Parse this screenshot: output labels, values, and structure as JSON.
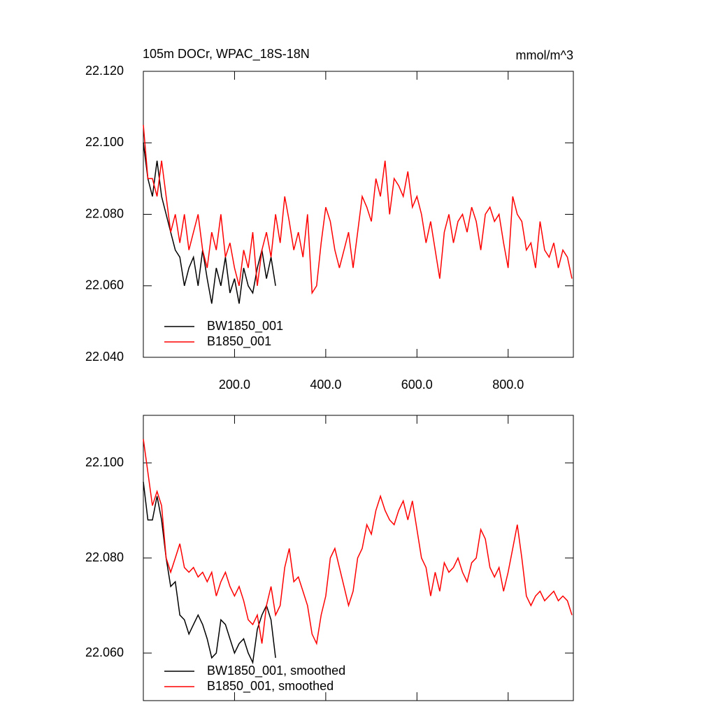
{
  "chart_data": [
    {
      "type": "line",
      "title": "105m DOCr, WPAC_18S-18N",
      "units": "mmol/m^3",
      "xlim": [
        0,
        943
      ],
      "ylim": [
        22.04,
        22.12
      ],
      "xticks": [
        {
          "value": 200,
          "label": "200.0"
        },
        {
          "value": 400,
          "label": "400.0"
        },
        {
          "value": 600,
          "label": "600.0"
        },
        {
          "value": 800,
          "label": "800.0"
        }
      ],
      "yticks": [
        {
          "value": 22.04,
          "label": "22.040"
        },
        {
          "value": 22.06,
          "label": "22.060"
        },
        {
          "value": 22.08,
          "label": "22.080"
        },
        {
          "value": 22.1,
          "label": "22.100"
        },
        {
          "value": 22.12,
          "label": "22.120"
        }
      ],
      "series": [
        {
          "name": "BW1850_001",
          "color": "#000000",
          "x": [
            0,
            10,
            20,
            30,
            40,
            50,
            60,
            70,
            80,
            90,
            100,
            110,
            120,
            130,
            140,
            150,
            160,
            170,
            180,
            190,
            200,
            210,
            220,
            230,
            240,
            250,
            260,
            270,
            280,
            290
          ],
          "values": [
            22.1,
            22.09,
            22.085,
            22.095,
            22.085,
            22.08,
            22.075,
            22.07,
            22.068,
            22.06,
            22.065,
            22.068,
            22.06,
            22.07,
            22.062,
            22.055,
            22.065,
            22.06,
            22.068,
            22.058,
            22.062,
            22.055,
            22.065,
            22.06,
            22.058,
            22.065,
            22.07,
            22.062,
            22.068,
            22.06
          ]
        },
        {
          "name": "B1850_001",
          "color": "#ff0000",
          "x": [
            0,
            10,
            20,
            30,
            40,
            50,
            60,
            70,
            80,
            90,
            100,
            110,
            120,
            130,
            140,
            150,
            160,
            170,
            180,
            190,
            200,
            210,
            220,
            230,
            240,
            250,
            260,
            270,
            280,
            290,
            300,
            310,
            320,
            330,
            340,
            350,
            360,
            370,
            380,
            390,
            400,
            410,
            420,
            430,
            440,
            450,
            460,
            470,
            480,
            490,
            500,
            510,
            520,
            530,
            540,
            550,
            560,
            570,
            580,
            590,
            600,
            610,
            620,
            630,
            640,
            650,
            660,
            670,
            680,
            690,
            700,
            710,
            720,
            730,
            740,
            750,
            760,
            770,
            780,
            790,
            800,
            810,
            820,
            830,
            840,
            850,
            860,
            870,
            880,
            890,
            900,
            910,
            920,
            930,
            940
          ],
          "values": [
            22.105,
            22.09,
            22.09,
            22.085,
            22.095,
            22.085,
            22.075,
            22.08,
            22.072,
            22.08,
            22.07,
            22.075,
            22.08,
            22.07,
            22.065,
            22.075,
            22.07,
            22.08,
            22.068,
            22.072,
            22.065,
            22.06,
            22.07,
            22.065,
            22.075,
            22.06,
            22.07,
            22.075,
            22.068,
            22.08,
            22.072,
            22.085,
            22.078,
            22.07,
            22.075,
            22.068,
            22.08,
            22.058,
            22.06,
            22.072,
            22.082,
            22.078,
            22.07,
            22.065,
            22.07,
            22.075,
            22.065,
            22.075,
            22.085,
            22.082,
            22.078,
            22.09,
            22.085,
            22.095,
            22.08,
            22.09,
            22.088,
            22.085,
            22.092,
            22.082,
            22.085,
            22.08,
            22.072,
            22.078,
            22.07,
            22.062,
            22.075,
            22.08,
            22.072,
            22.078,
            22.08,
            22.075,
            22.082,
            22.078,
            22.07,
            22.08,
            22.082,
            22.078,
            22.08,
            22.072,
            22.065,
            22.085,
            22.08,
            22.078,
            22.07,
            22.072,
            22.065,
            22.078,
            22.07,
            22.068,
            22.072,
            22.065,
            22.07,
            22.068,
            22.062
          ]
        }
      ]
    },
    {
      "type": "line",
      "xlim": [
        0,
        943
      ],
      "ylim": [
        22.05,
        22.11
      ],
      "yticks": [
        {
          "value": 22.06,
          "label": "22.060"
        },
        {
          "value": 22.08,
          "label": "22.080"
        },
        {
          "value": 22.1,
          "label": "22.100"
        }
      ],
      "series": [
        {
          "name": "BW1850_001, smoothed",
          "color": "#000000",
          "x": [
            0,
            10,
            20,
            30,
            40,
            50,
            60,
            70,
            80,
            90,
            100,
            110,
            120,
            130,
            140,
            150,
            160,
            170,
            180,
            190,
            200,
            210,
            220,
            230,
            240,
            250,
            260,
            270,
            280,
            290
          ],
          "values": [
            22.096,
            22.088,
            22.088,
            22.093,
            22.088,
            22.08,
            22.074,
            22.075,
            22.068,
            22.067,
            22.064,
            22.066,
            22.068,
            22.066,
            22.063,
            22.059,
            22.06,
            22.067,
            22.066,
            22.063,
            22.06,
            22.062,
            22.063,
            22.06,
            22.058,
            22.065,
            22.068,
            22.07,
            22.067,
            22.059
          ]
        },
        {
          "name": "B1850_001, smoothed",
          "color": "#ff0000",
          "x": [
            0,
            10,
            20,
            30,
            40,
            50,
            60,
            70,
            80,
            90,
            100,
            110,
            120,
            130,
            140,
            150,
            160,
            170,
            180,
            190,
            200,
            210,
            220,
            230,
            240,
            250,
            260,
            270,
            280,
            290,
            300,
            310,
            320,
            330,
            340,
            350,
            360,
            370,
            380,
            390,
            400,
            410,
            420,
            430,
            440,
            450,
            460,
            470,
            480,
            490,
            500,
            510,
            520,
            530,
            540,
            550,
            560,
            570,
            580,
            590,
            600,
            610,
            620,
            630,
            640,
            650,
            660,
            670,
            680,
            690,
            700,
            710,
            720,
            730,
            740,
            750,
            760,
            770,
            780,
            790,
            800,
            810,
            820,
            830,
            840,
            850,
            860,
            870,
            880,
            890,
            900,
            910,
            920,
            930,
            940
          ],
          "values": [
            22.105,
            22.098,
            22.091,
            22.094,
            22.091,
            22.08,
            22.077,
            22.08,
            22.083,
            22.078,
            22.077,
            22.078,
            22.076,
            22.077,
            22.075,
            22.077,
            22.072,
            22.075,
            22.077,
            22.074,
            22.072,
            22.074,
            22.071,
            22.067,
            22.066,
            22.068,
            22.062,
            22.07,
            22.074,
            22.068,
            22.07,
            22.078,
            22.082,
            22.075,
            22.076,
            22.073,
            22.07,
            22.064,
            22.062,
            22.068,
            22.072,
            22.08,
            22.082,
            22.078,
            22.074,
            22.07,
            22.073,
            22.08,
            22.082,
            22.087,
            22.085,
            22.09,
            22.093,
            22.09,
            22.088,
            22.087,
            22.09,
            22.092,
            22.088,
            22.092,
            22.086,
            22.08,
            22.078,
            22.072,
            22.077,
            22.073,
            22.079,
            22.077,
            22.078,
            22.08,
            22.077,
            22.075,
            22.079,
            22.08,
            22.086,
            22.084,
            22.078,
            22.076,
            22.078,
            22.073,
            22.077,
            22.082,
            22.087,
            22.08,
            22.072,
            22.07,
            22.072,
            22.073,
            22.071,
            22.072,
            22.073,
            22.071,
            22.072,
            22.071,
            22.068
          ]
        }
      ]
    }
  ]
}
